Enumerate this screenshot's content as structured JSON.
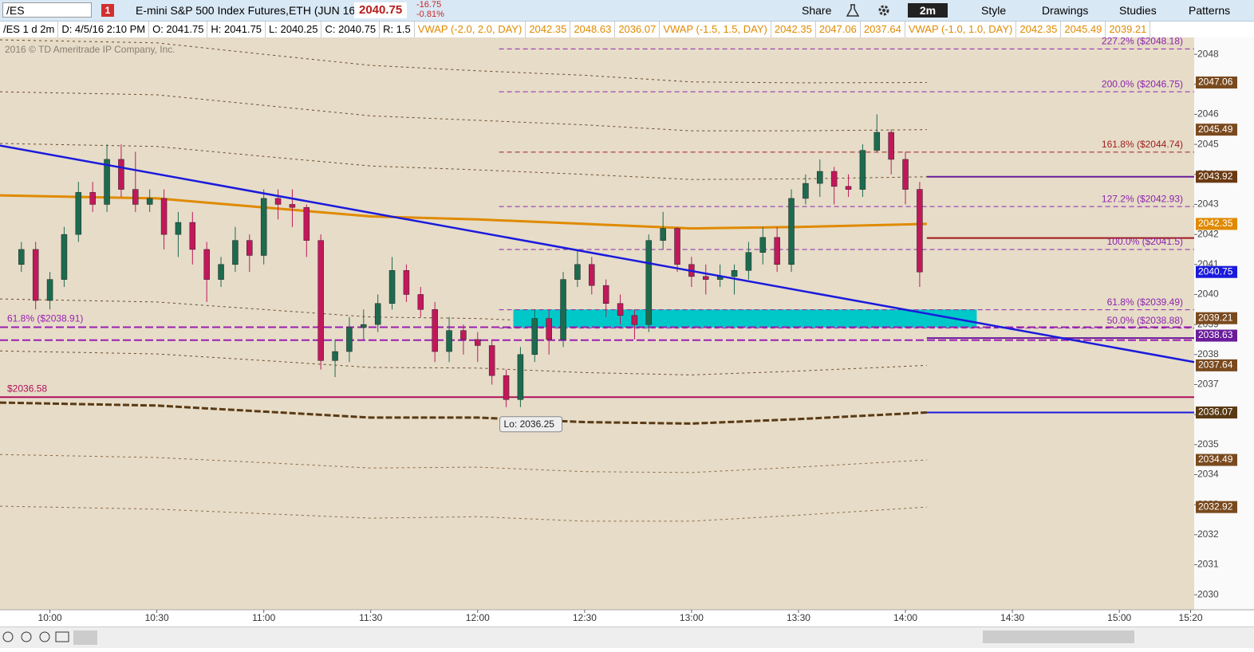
{
  "toolbar": {
    "symbol": "/ES",
    "alert": "1",
    "description": "E-mini S&P 500 Index Futures,ETH (JUN 16)",
    "last": "2040.75",
    "change": "-16.75",
    "change_pct": "-0.81%",
    "share": "Share",
    "aggregation": "2m",
    "style": "Style",
    "drawings": "Drawings",
    "studies": "Studies",
    "patterns": "Patterns"
  },
  "info_bar": {
    "items": [
      "/ES 1 d 2m",
      "D: 4/5/16 2:10 PM",
      "O: 2041.75",
      "H: 2041.75",
      "L: 2040.25",
      "C: 2040.75",
      "R: 1.5"
    ],
    "studies": [
      {
        "label": "VWAP (-2.0, 2.0, DAY)",
        "values": [
          "2042.35",
          "2048.63",
          "2036.07"
        ]
      },
      {
        "label": "VWAP (-1.5, 1.5, DAY)",
        "values": [
          "2042.35",
          "2047.06",
          "2037.64"
        ]
      },
      {
        "label": "VWAP (-1.0, 1.0, DAY)",
        "values": [
          "2042.35",
          "2045.49",
          "2039.21"
        ]
      }
    ]
  },
  "chart_data": {
    "type": "candlestick",
    "copyright": "2016 © TD Ameritrade IP Company, Inc.",
    "x": [
      "09:52",
      "09:56",
      "10:00",
      "10:04",
      "10:08",
      "10:12",
      "10:16",
      "10:20",
      "10:24",
      "10:28",
      "10:32",
      "10:36",
      "10:40",
      "10:44",
      "10:48",
      "10:52",
      "10:56",
      "11:00",
      "11:04",
      "11:08",
      "11:12",
      "11:16",
      "11:20",
      "11:24",
      "11:28",
      "11:32",
      "11:36",
      "11:40",
      "11:44",
      "11:48",
      "11:52",
      "11:56",
      "12:00",
      "12:04",
      "12:08",
      "12:12",
      "12:16",
      "12:20",
      "12:24",
      "12:28",
      "12:32",
      "12:36",
      "12:40",
      "12:44",
      "12:48",
      "12:52",
      "12:56",
      "13:00",
      "13:04",
      "13:08",
      "13:12",
      "13:16",
      "13:20",
      "13:24",
      "13:28",
      "13:32",
      "13:36",
      "13:40",
      "13:44",
      "13:48",
      "13:52",
      "13:56",
      "14:00",
      "14:04"
    ],
    "open": [
      2041.0,
      2041.5,
      2039.8,
      2040.5,
      2042.0,
      2043.4,
      2043.0,
      2044.5,
      2043.5,
      2043.0,
      2043.2,
      2042.0,
      2042.4,
      2041.5,
      2040.5,
      2041.0,
      2041.8,
      2041.3,
      2043.2,
      2043.0,
      2042.9,
      2041.8,
      2037.8,
      2038.1,
      2038.9,
      2039.0,
      2039.7,
      2040.8,
      2040.0,
      2039.5,
      2038.1,
      2038.8,
      2038.5,
      2038.3,
      2037.3,
      2036.5,
      2038.0,
      2039.2,
      2038.5,
      2040.5,
      2041.0,
      2040.3,
      2039.7,
      2039.3,
      2039.0,
      2041.8,
      2042.2,
      2041.0,
      2040.6,
      2040.5,
      2040.6,
      2040.8,
      2041.4,
      2041.9,
      2041.0,
      2043.2,
      2043.7,
      2044.1,
      2043.6,
      2043.5,
      2044.8,
      2045.4,
      2044.5,
      2043.5
    ],
    "high": [
      2041.75,
      2041.75,
      2040.75,
      2042.25,
      2043.75,
      2043.75,
      2045.0,
      2045.0,
      2044.75,
      2043.5,
      2043.5,
      2042.75,
      2042.75,
      2041.75,
      2041.25,
      2042.25,
      2042.0,
      2043.5,
      2043.5,
      2043.5,
      2043.0,
      2042.0,
      2038.5,
      2039.25,
      2039.5,
      2040.0,
      2041.25,
      2041.0,
      2040.25,
      2039.75,
      2039.25,
      2039.0,
      2038.75,
      2038.5,
      2037.5,
      2038.25,
      2039.5,
      2039.5,
      2040.75,
      2041.5,
      2041.25,
      2040.5,
      2040.0,
      2039.5,
      2042.0,
      2042.75,
      2042.25,
      2041.25,
      2041.0,
      2041.0,
      2041.0,
      2041.75,
      2042.25,
      2042.25,
      2043.5,
      2044.0,
      2044.5,
      2044.25,
      2044.0,
      2045.0,
      2046.0,
      2045.5,
      2044.75,
      2043.75
    ],
    "low": [
      2040.75,
      2039.5,
      2039.5,
      2040.25,
      2041.75,
      2042.75,
      2042.75,
      2043.25,
      2042.75,
      2042.75,
      2041.5,
      2041.25,
      2041.0,
      2039.75,
      2040.25,
      2040.75,
      2040.75,
      2041.0,
      2042.5,
      2042.25,
      2041.25,
      2037.5,
      2037.25,
      2037.75,
      2038.5,
      2038.75,
      2039.5,
      2039.75,
      2039.25,
      2037.75,
      2037.75,
      2038.0,
      2037.75,
      2037.0,
      2036.25,
      2036.25,
      2037.75,
      2038.0,
      2038.25,
      2040.25,
      2040.0,
      2039.25,
      2039.0,
      2038.5,
      2038.75,
      2041.5,
      2040.75,
      2040.25,
      2040.0,
      2040.25,
      2040.0,
      2040.5,
      2041.0,
      2040.75,
      2040.75,
      2043.0,
      2043.25,
      2043.0,
      2043.25,
      2043.25,
      2044.75,
      2044.0,
      2043.0,
      2040.25
    ],
    "close": [
      2041.5,
      2039.8,
      2040.5,
      2042.0,
      2043.4,
      2043.0,
      2044.5,
      2043.5,
      2043.0,
      2043.2,
      2042.0,
      2042.4,
      2041.5,
      2040.5,
      2041.0,
      2041.8,
      2041.3,
      2043.2,
      2043.0,
      2042.9,
      2041.8,
      2037.8,
      2038.1,
      2038.9,
      2039.0,
      2039.7,
      2040.8,
      2040.0,
      2039.5,
      2038.1,
      2038.8,
      2038.5,
      2038.3,
      2037.3,
      2036.5,
      2038.0,
      2039.2,
      2038.5,
      2040.5,
      2041.0,
      2040.3,
      2039.7,
      2039.3,
      2039.0,
      2041.8,
      2042.2,
      2041.0,
      2040.6,
      2040.5,
      2040.6,
      2040.8,
      2041.4,
      2041.9,
      2041.0,
      2043.2,
      2043.7,
      2044.1,
      2043.6,
      2043.5,
      2044.8,
      2045.4,
      2044.5,
      2043.5,
      2040.75
    ],
    "up_color": "#1d6b4f",
    "down_color": "#c2185b",
    "xlim": [
      "09:46",
      "15:21"
    ],
    "xticks": [
      "10:00",
      "10:30",
      "11:00",
      "11:30",
      "12:00",
      "12:30",
      "13:00",
      "13:30",
      "14:00",
      "14:30",
      "15:00",
      "15:20"
    ],
    "ylim": [
      2029.5,
      2048.56
    ],
    "yticks": [
      2030,
      2031,
      2032,
      2033,
      2034,
      2035,
      2036,
      2037,
      2038,
      2039,
      2040,
      2041,
      2042,
      2043,
      2044,
      2045,
      2046,
      2047,
      2048
    ],
    "study_x": [
      "09:46",
      "10:30",
      "11:00",
      "11:30",
      "12:00",
      "12:30",
      "13:00",
      "13:30",
      "14:06"
    ],
    "vwap": {
      "values": [
        2043.3,
        2043.2,
        2042.9,
        2042.6,
        2042.5,
        2042.35,
        2042.2,
        2042.25,
        2042.35
      ],
      "color": "#e08a00"
    },
    "bands": [
      {
        "values": [
          2048.48,
          2048.38,
          2048.0,
          2047.63,
          2047.45,
          2047.3,
          2047.08,
          2047.05,
          2047.06
        ],
        "color": "#6b4a2a",
        "width": 1
      },
      {
        "values": [
          2046.75,
          2046.65,
          2046.3,
          2045.95,
          2045.8,
          2045.65,
          2045.45,
          2045.45,
          2045.49
        ],
        "color": "#6b4a2a",
        "width": 1
      },
      {
        "values": [
          2045.03,
          2044.93,
          2044.6,
          2044.28,
          2044.15,
          2044.0,
          2043.83,
          2043.85,
          2043.92
        ],
        "color": "#6b4a2a",
        "width": 1
      },
      {
        "values": [
          2039.85,
          2039.75,
          2039.5,
          2039.25,
          2039.2,
          2039.05,
          2038.95,
          2039.05,
          2039.21
        ],
        "color": "#6b4a2a",
        "width": 1
      },
      {
        "values": [
          2038.12,
          2038.02,
          2037.8,
          2037.57,
          2037.55,
          2037.4,
          2037.32,
          2037.45,
          2037.64
        ],
        "color": "#6b4a2a",
        "width": 1
      },
      {
        "values": [
          2036.4,
          2036.3,
          2036.1,
          2035.9,
          2035.9,
          2035.75,
          2035.7,
          2035.85,
          2036.07
        ],
        "color": "#5a3a14",
        "width": 3
      },
      {
        "values": [
          2034.67,
          2034.57,
          2034.4,
          2034.22,
          2034.25,
          2034.1,
          2034.07,
          2034.25,
          2034.49
        ],
        "color": "#8b6a44",
        "width": 1
      },
      {
        "values": [
          2032.95,
          2032.85,
          2032.7,
          2032.55,
          2032.6,
          2032.45,
          2032.45,
          2032.65,
          2032.92
        ],
        "color": "#8b6a44",
        "width": 1
      }
    ],
    "trendline": {
      "x": [
        "09:46",
        "15:21"
      ],
      "values": [
        2044.96,
        2037.75
      ],
      "color": "#1a1adc"
    },
    "zone": {
      "x": [
        "12:10",
        "14:20"
      ],
      "values": [
        2039.5,
        2038.9
      ],
      "color": "#00c8c8"
    },
    "fib": {
      "from": "12:06",
      "levels": [
        {
          "label": "227.2% ($2048.18)",
          "value": 2048.18,
          "color": "#8e24aa"
        },
        {
          "label": "200.0% ($2046.75)",
          "value": 2046.75,
          "color": "#8e24aa"
        },
        {
          "label": "161.8% ($2044.74)",
          "value": 2044.74,
          "color": "#9c1c1c"
        },
        {
          "label": "127.2% ($2042.93)",
          "value": 2042.93,
          "color": "#8e24aa"
        },
        {
          "label": "100.0% ($2041.5)",
          "value": 2041.5,
          "color": "#8e24aa"
        },
        {
          "label": "61.8% ($2039.49)",
          "value": 2039.49,
          "color": "#8e24aa"
        },
        {
          "label": "50.0% ($2038.88)",
          "value": 2038.88,
          "color": "#8e24aa"
        }
      ]
    },
    "levels": [
      {
        "label": "61.8% ($2038.91)",
        "value": 2038.91,
        "color": "#9b1fb0",
        "dashed": true,
        "from": "09:46"
      },
      {
        "label": "$2036.58",
        "value": 2036.58,
        "color": "#b0105a",
        "dashed": false,
        "from": "09:46"
      },
      {
        "value": 2038.48,
        "color": "#9b1fb0",
        "dashed": true,
        "from": "09:46"
      },
      {
        "value": 2043.92,
        "color": "#6a1b9a",
        "dashed": false,
        "from": "14:06"
      },
      {
        "value": 2041.88,
        "color": "#a01818",
        "dashed": false,
        "from": "14:06"
      },
      {
        "value": 2038.55,
        "color": "#6a1b9a",
        "dashed": false,
        "from": "14:06"
      },
      {
        "value": 2036.07,
        "color": "#1a1adc",
        "dashed": false,
        "from": "14:06"
      }
    ],
    "annotation": {
      "text": "Lo: 2036.25",
      "x": "12:08",
      "value": 2036.25
    },
    "price_labels": [
      2047.06,
      2045.49,
      2043.92,
      2042.35,
      2040.75,
      2039.21,
      2038.63,
      2037.64,
      2036.07,
      2034.49,
      2032.92
    ],
    "price_label_colors": [
      "#7a4a1e",
      "#7a4a1e",
      "#6b3a12",
      "#e08a00",
      "#1a1adc",
      "#7a4a1e",
      "#6a1b9a",
      "#7a4a1e",
      "#5a3a14",
      "#7a4a1e",
      "#7a4a1e"
    ]
  }
}
